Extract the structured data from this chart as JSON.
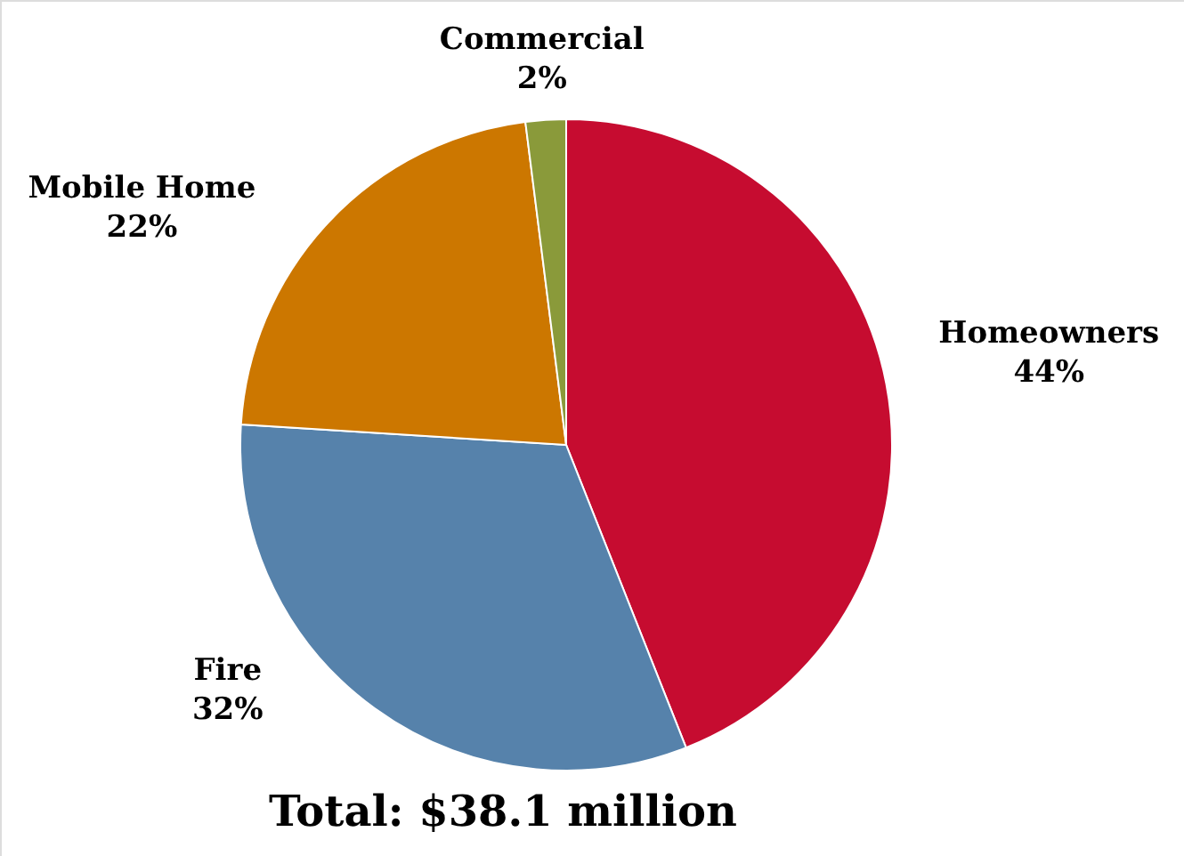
{
  "chart_data": {
    "type": "pie",
    "title": "Total: $38.1 million",
    "categories": [
      "Homeowners",
      "Fire",
      "Mobile Home",
      "Commercial"
    ],
    "values": [
      44,
      32,
      22,
      2
    ],
    "value_labels": [
      "44%",
      "32%",
      "22%",
      "2%"
    ],
    "colors": [
      "#c60c30",
      "#5682ab",
      "#cc7700",
      "#8a9a3a"
    ]
  }
}
